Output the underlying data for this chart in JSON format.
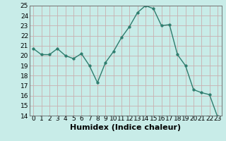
{
  "x": [
    0,
    1,
    2,
    3,
    4,
    5,
    6,
    7,
    8,
    9,
    10,
    11,
    12,
    13,
    14,
    15,
    16,
    17,
    18,
    19,
    20,
    21,
    22,
    23
  ],
  "y": [
    20.7,
    20.1,
    20.1,
    20.7,
    20.0,
    19.7,
    20.2,
    19.0,
    17.3,
    19.3,
    20.4,
    21.8,
    22.9,
    24.3,
    25.0,
    24.7,
    23.0,
    23.1,
    20.1,
    19.0,
    16.6,
    16.3,
    16.1,
    13.9
  ],
  "line_color": "#2e7d6e",
  "marker": "o",
  "marker_size": 2.5,
  "bg_color": "#c8ece8",
  "grid_color": "#c8b0b0",
  "xlabel": "Humidex (Indice chaleur)",
  "ylim": [
    14,
    25
  ],
  "xlim": [
    -0.5,
    23.5
  ],
  "yticks": [
    14,
    15,
    16,
    17,
    18,
    19,
    20,
    21,
    22,
    23,
    24,
    25
  ],
  "xticks": [
    0,
    1,
    2,
    3,
    4,
    5,
    6,
    7,
    8,
    9,
    10,
    11,
    12,
    13,
    14,
    15,
    16,
    17,
    18,
    19,
    20,
    21,
    22,
    23
  ],
  "tick_fontsize": 6.5,
  "label_fontsize": 8
}
